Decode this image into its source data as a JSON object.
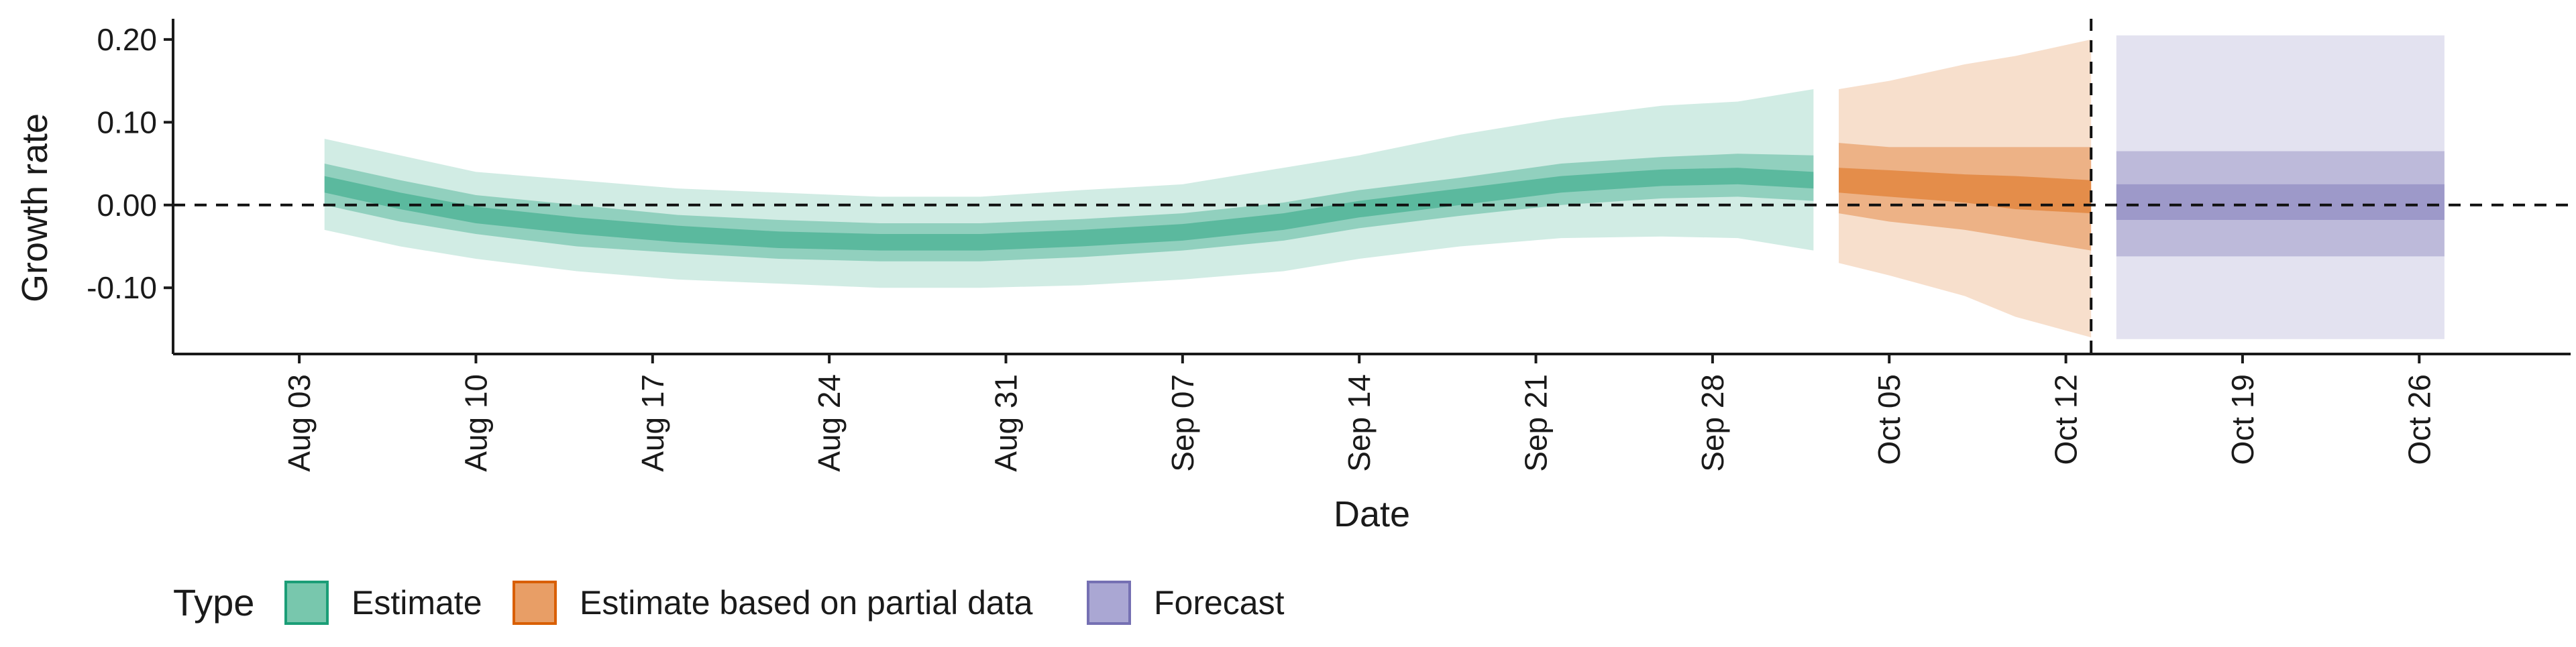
{
  "chart_data": {
    "type": "area",
    "title": "",
    "xlabel": "Date",
    "ylabel": "Growth rate",
    "ylim": [
      -0.18,
      0.225
    ],
    "xlim": [
      "2020-07-29",
      "2020-11-01"
    ],
    "x_ticks": [
      "Aug 03",
      "Aug 10",
      "Aug 17",
      "Aug 24",
      "Aug 31",
      "Sep 07",
      "Sep 14",
      "Sep 21",
      "Sep 28",
      "Oct 05",
      "Oct 12",
      "Oct 19",
      "Oct 26"
    ],
    "x_tick_dates": [
      "2020-08-03",
      "2020-08-10",
      "2020-08-17",
      "2020-08-24",
      "2020-08-31",
      "2020-09-07",
      "2020-09-14",
      "2020-09-21",
      "2020-09-28",
      "2020-10-05",
      "2020-10-12",
      "2020-10-19",
      "2020-10-26"
    ],
    "y_ticks": [
      -0.1,
      0.0,
      0.1,
      0.2
    ],
    "y_tick_labels": [
      "-0.10",
      "0.00",
      "0.10",
      "0.20"
    ],
    "reference_line_y": 0.0,
    "forecast_date_line": "2020-10-13",
    "grid": false,
    "legend": {
      "title": "Type",
      "position": "bottom-left",
      "items": [
        "Estimate",
        "Estimate based on partial data",
        "Forecast"
      ]
    },
    "colors": {
      "Estimate": "#1b9e77",
      "Estimate based on partial data": "#d95f02",
      "Forecast": "#7570b3"
    },
    "series": [
      {
        "name": "Estimate",
        "points": [
          {
            "date": "2020-08-04",
            "median": 0.025,
            "lower_20": 0.015,
            "upper_20": 0.035,
            "lower_50": 0.0,
            "upper_50": 0.05,
            "lower_90": -0.03,
            "upper_90": 0.08
          },
          {
            "date": "2020-08-07",
            "median": 0.005,
            "lower_20": -0.005,
            "upper_20": 0.015,
            "lower_50": -0.02,
            "upper_50": 0.03,
            "lower_90": -0.05,
            "upper_90": 0.06
          },
          {
            "date": "2020-08-10",
            "median": -0.012,
            "lower_20": -0.022,
            "upper_20": -0.002,
            "lower_50": -0.035,
            "upper_50": 0.012,
            "lower_90": -0.065,
            "upper_90": 0.04
          },
          {
            "date": "2020-08-14",
            "median": -0.025,
            "lower_20": -0.035,
            "upper_20": -0.015,
            "lower_50": -0.05,
            "upper_50": 0.0,
            "lower_90": -0.08,
            "upper_90": 0.03
          },
          {
            "date": "2020-08-18",
            "median": -0.035,
            "lower_20": -0.045,
            "upper_20": -0.025,
            "lower_50": -0.058,
            "upper_50": -0.012,
            "lower_90": -0.09,
            "upper_90": 0.02
          },
          {
            "date": "2020-08-22",
            "median": -0.042,
            "lower_20": -0.052,
            "upper_20": -0.032,
            "lower_50": -0.065,
            "upper_50": -0.018,
            "lower_90": -0.095,
            "upper_90": 0.015
          },
          {
            "date": "2020-08-26",
            "median": -0.045,
            "lower_20": -0.055,
            "upper_20": -0.035,
            "lower_50": -0.068,
            "upper_50": -0.022,
            "lower_90": -0.1,
            "upper_90": 0.01
          },
          {
            "date": "2020-08-30",
            "median": -0.045,
            "lower_20": -0.055,
            "upper_20": -0.035,
            "lower_50": -0.068,
            "upper_50": -0.022,
            "lower_90": -0.1,
            "upper_90": 0.01
          },
          {
            "date": "2020-09-03",
            "median": -0.04,
            "lower_20": -0.05,
            "upper_20": -0.03,
            "lower_50": -0.063,
            "upper_50": -0.017,
            "lower_90": -0.097,
            "upper_90": 0.018
          },
          {
            "date": "2020-09-07",
            "median": -0.033,
            "lower_20": -0.043,
            "upper_20": -0.023,
            "lower_50": -0.055,
            "upper_50": -0.01,
            "lower_90": -0.09,
            "upper_90": 0.025
          },
          {
            "date": "2020-09-11",
            "median": -0.02,
            "lower_20": -0.03,
            "upper_20": -0.01,
            "lower_50": -0.043,
            "upper_50": 0.003,
            "lower_90": -0.08,
            "upper_90": 0.045
          },
          {
            "date": "2020-09-14",
            "median": -0.005,
            "lower_20": -0.015,
            "upper_20": 0.005,
            "lower_50": -0.028,
            "upper_50": 0.018,
            "lower_90": -0.065,
            "upper_90": 0.06
          },
          {
            "date": "2020-09-18",
            "median": 0.01,
            "lower_20": 0.0,
            "upper_20": 0.02,
            "lower_50": -0.013,
            "upper_50": 0.033,
            "lower_90": -0.05,
            "upper_90": 0.085
          },
          {
            "date": "2020-09-22",
            "median": 0.025,
            "lower_20": 0.015,
            "upper_20": 0.035,
            "lower_50": 0.0,
            "upper_50": 0.05,
            "lower_90": -0.04,
            "upper_90": 0.105
          },
          {
            "date": "2020-09-26",
            "median": 0.033,
            "lower_20": 0.023,
            "upper_20": 0.043,
            "lower_50": 0.008,
            "upper_50": 0.058,
            "lower_90": -0.038,
            "upper_90": 0.12
          },
          {
            "date": "2020-09-29",
            "median": 0.035,
            "lower_20": 0.025,
            "upper_20": 0.045,
            "lower_50": 0.01,
            "upper_50": 0.062,
            "lower_90": -0.04,
            "upper_90": 0.125
          },
          {
            "date": "2020-10-02",
            "median": 0.03,
            "lower_20": 0.02,
            "upper_20": 0.04,
            "lower_50": 0.005,
            "upper_50": 0.06,
            "lower_90": -0.055,
            "upper_90": 0.14
          }
        ]
      },
      {
        "name": "Estimate based on partial data",
        "points": [
          {
            "date": "2020-10-03",
            "median": 0.03,
            "lower_20": 0.015,
            "upper_20": 0.045,
            "lower_50": -0.01,
            "upper_50": 0.075,
            "lower_90": -0.07,
            "upper_90": 0.14
          },
          {
            "date": "2020-10-05",
            "median": 0.025,
            "lower_20": 0.01,
            "upper_20": 0.042,
            "lower_50": -0.02,
            "upper_50": 0.07,
            "lower_90": -0.085,
            "upper_90": 0.15
          },
          {
            "date": "2020-10-08",
            "median": 0.02,
            "lower_20": 0.003,
            "upper_20": 0.037,
            "lower_50": -0.03,
            "upper_50": 0.07,
            "lower_90": -0.11,
            "upper_90": 0.17
          },
          {
            "date": "2020-10-10",
            "median": 0.015,
            "lower_20": -0.005,
            "upper_20": 0.035,
            "lower_50": -0.04,
            "upper_50": 0.07,
            "lower_90": -0.135,
            "upper_90": 0.18
          },
          {
            "date": "2020-10-13",
            "median": 0.01,
            "lower_20": -0.01,
            "upper_20": 0.03,
            "lower_50": -0.055,
            "upper_50": 0.07,
            "lower_90": -0.16,
            "upper_90": 0.2
          }
        ]
      },
      {
        "name": "Forecast",
        "points": [
          {
            "date": "2020-10-14",
            "median": 0.0,
            "lower_20": -0.018,
            "upper_20": 0.025,
            "lower_50": -0.062,
            "upper_50": 0.065,
            "lower_90": -0.162,
            "upper_90": 0.205
          },
          {
            "date": "2020-10-27",
            "median": 0.0,
            "lower_20": -0.018,
            "upper_20": 0.025,
            "lower_50": -0.062,
            "upper_50": 0.065,
            "lower_90": -0.162,
            "upper_90": 0.205
          }
        ]
      }
    ]
  }
}
